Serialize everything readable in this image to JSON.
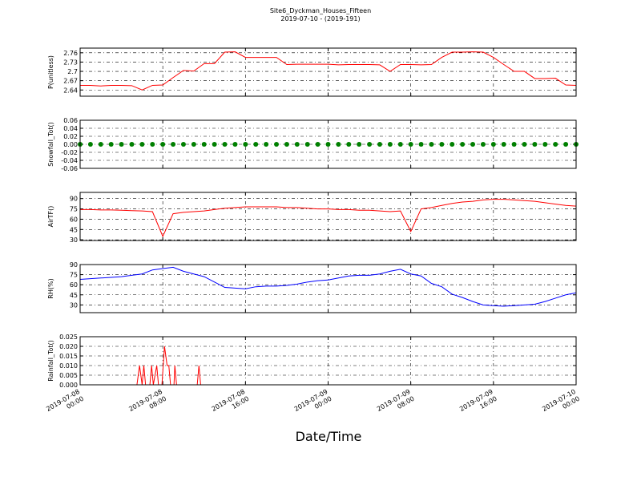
{
  "chart_data": [
    {
      "type": "line",
      "title": "Site6_Dyckman_Houses_Fifteen",
      "subtitle": "2019-07-10 - (2019-191)",
      "ylabel": "P(unitless)",
      "color": "#ff0000",
      "xlim": [
        "2019-07-08 00:00",
        "2019-07-10 00:00"
      ],
      "x": [
        "2019-07-08 00:00",
        "2019-07-08 01:00",
        "2019-07-08 02:00",
        "2019-07-08 03:00",
        "2019-07-08 04:00",
        "2019-07-08 05:00",
        "2019-07-08 06:00",
        "2019-07-08 07:00",
        "2019-07-08 08:00",
        "2019-07-08 09:00",
        "2019-07-08 10:00",
        "2019-07-08 11:00",
        "2019-07-08 12:00",
        "2019-07-08 13:00",
        "2019-07-08 14:00",
        "2019-07-08 15:00",
        "2019-07-08 16:00",
        "2019-07-08 17:00",
        "2019-07-08 18:00",
        "2019-07-08 19:00",
        "2019-07-08 20:00",
        "2019-07-08 21:00",
        "2019-07-08 22:00",
        "2019-07-08 23:00",
        "2019-07-09 00:00",
        "2019-07-09 01:00",
        "2019-07-09 02:00",
        "2019-07-09 03:00",
        "2019-07-09 04:00",
        "2019-07-09 05:00",
        "2019-07-09 06:00",
        "2019-07-09 07:00",
        "2019-07-09 08:00",
        "2019-07-09 09:00",
        "2019-07-09 10:00",
        "2019-07-09 11:00",
        "2019-07-09 12:00",
        "2019-07-09 13:00",
        "2019-07-09 14:00",
        "2019-07-09 15:00",
        "2019-07-09 16:00",
        "2019-07-09 17:00",
        "2019-07-09 18:00",
        "2019-07-09 19:00",
        "2019-07-09 20:00",
        "2019-07-09 21:00",
        "2019-07-09 22:00",
        "2019-07-09 23:00",
        "2019-07-10 00:00"
      ],
      "values": [
        2.655,
        2.655,
        2.653,
        2.655,
        2.655,
        2.654,
        2.64,
        2.655,
        2.656,
        2.68,
        2.703,
        2.701,
        2.725,
        2.725,
        2.762,
        2.763,
        2.745,
        2.745,
        2.745,
        2.745,
        2.722,
        2.723,
        2.723,
        2.723,
        2.723,
        2.721,
        2.722,
        2.722,
        2.722,
        2.721,
        2.7,
        2.722,
        2.722,
        2.721,
        2.722,
        2.745,
        2.762,
        2.762,
        2.763,
        2.762,
        2.745,
        2.722,
        2.7,
        2.7,
        2.677,
        2.677,
        2.678,
        2.656,
        2.655
      ],
      "ylim": [
        2.62,
        2.775
      ],
      "yticks": [
        2.64,
        2.67,
        2.7,
        2.73,
        2.76
      ],
      "grid": true
    },
    {
      "type": "scatter",
      "ylabel": "Snowfall_Tot()",
      "color": "#008000",
      "xlim": [
        "2019-07-08 00:00",
        "2019-07-10 00:00"
      ],
      "x": [
        "2019-07-08 00:00",
        "2019-07-08 01:00",
        "2019-07-08 02:00",
        "2019-07-08 03:00",
        "2019-07-08 04:00",
        "2019-07-08 05:00",
        "2019-07-08 06:00",
        "2019-07-08 07:00",
        "2019-07-08 08:00",
        "2019-07-08 09:00",
        "2019-07-08 10:00",
        "2019-07-08 11:00",
        "2019-07-08 12:00",
        "2019-07-08 13:00",
        "2019-07-08 14:00",
        "2019-07-08 15:00",
        "2019-07-08 16:00",
        "2019-07-08 17:00",
        "2019-07-08 18:00",
        "2019-07-08 19:00",
        "2019-07-08 20:00",
        "2019-07-08 21:00",
        "2019-07-08 22:00",
        "2019-07-08 23:00",
        "2019-07-09 00:00",
        "2019-07-09 01:00",
        "2019-07-09 02:00",
        "2019-07-09 03:00",
        "2019-07-09 04:00",
        "2019-07-09 05:00",
        "2019-07-09 06:00",
        "2019-07-09 07:00",
        "2019-07-09 08:00",
        "2019-07-09 09:00",
        "2019-07-09 10:00",
        "2019-07-09 11:00",
        "2019-07-09 12:00",
        "2019-07-09 13:00",
        "2019-07-09 14:00",
        "2019-07-09 15:00",
        "2019-07-09 16:00",
        "2019-07-09 17:00",
        "2019-07-09 18:00",
        "2019-07-09 19:00",
        "2019-07-09 20:00",
        "2019-07-09 21:00",
        "2019-07-09 22:00",
        "2019-07-09 23:00",
        "2019-07-10 00:00"
      ],
      "values": [
        0,
        0,
        0,
        0,
        0,
        0,
        0,
        0,
        0,
        0,
        0,
        0,
        0,
        0,
        0,
        0,
        0,
        0,
        0,
        0,
        0,
        0,
        0,
        0,
        0,
        0,
        0,
        0,
        0,
        0,
        0,
        0,
        0,
        0,
        0,
        0,
        0,
        0,
        0,
        0,
        0,
        0,
        0,
        0,
        0,
        0,
        0,
        0,
        0
      ],
      "ylim": [
        -0.06,
        0.06
      ],
      "yticks": [
        -0.06,
        -0.04,
        -0.02,
        {
          "value": 0,
          "label": "0.00"
        },
        0.02,
        0.04,
        0.06
      ],
      "grid": true
    },
    {
      "type": "line",
      "ylabel": "AirTF()",
      "color": "#ff0000",
      "xlim": [
        "2019-07-08 00:00",
        "2019-07-10 00:00"
      ],
      "x": [
        "2019-07-08 00:00",
        "2019-07-08 01:00",
        "2019-07-08 02:00",
        "2019-07-08 03:00",
        "2019-07-08 04:00",
        "2019-07-08 05:00",
        "2019-07-08 06:00",
        "2019-07-08 07:00",
        "2019-07-08 08:00",
        "2019-07-08 09:00",
        "2019-07-08 10:00",
        "2019-07-08 11:00",
        "2019-07-08 12:00",
        "2019-07-08 13:00",
        "2019-07-08 14:00",
        "2019-07-08 15:00",
        "2019-07-08 16:00",
        "2019-07-08 17:00",
        "2019-07-08 18:00",
        "2019-07-08 19:00",
        "2019-07-08 20:00",
        "2019-07-08 21:00",
        "2019-07-08 22:00",
        "2019-07-08 23:00",
        "2019-07-09 00:00",
        "2019-07-09 01:00",
        "2019-07-09 02:00",
        "2019-07-09 03:00",
        "2019-07-09 04:00",
        "2019-07-09 05:00",
        "2019-07-09 06:00",
        "2019-07-09 07:00",
        "2019-07-09 08:00",
        "2019-07-09 09:00",
        "2019-07-09 10:00",
        "2019-07-09 11:00",
        "2019-07-09 12:00",
        "2019-07-09 13:00",
        "2019-07-09 14:00",
        "2019-07-09 15:00",
        "2019-07-09 16:00",
        "2019-07-09 17:00",
        "2019-07-09 18:00",
        "2019-07-09 19:00",
        "2019-07-09 20:00",
        "2019-07-09 21:00",
        "2019-07-09 22:00",
        "2019-07-09 23:00",
        "2019-07-10 00:00"
      ],
      "values": [
        74,
        74,
        73.5,
        73.5,
        73,
        72.5,
        72,
        71,
        35,
        68,
        70,
        71,
        72,
        74,
        76,
        77,
        78,
        78,
        78,
        78,
        77,
        77,
        76,
        75,
        75,
        74,
        74,
        73,
        73,
        72,
        71,
        72,
        42,
        75,
        77,
        80,
        83,
        85,
        86,
        88,
        89,
        89,
        88,
        87,
        86,
        84,
        82,
        80,
        79
      ],
      "ylim": [
        29,
        99
      ],
      "yticks": [
        30,
        45,
        60,
        75,
        90
      ],
      "grid": true
    },
    {
      "type": "line",
      "ylabel": "RH(%)",
      "color": "#0000ff",
      "xlim": [
        "2019-07-08 00:00",
        "2019-07-10 00:00"
      ],
      "x": [
        "2019-07-08 00:00",
        "2019-07-08 01:00",
        "2019-07-08 02:00",
        "2019-07-08 03:00",
        "2019-07-08 04:00",
        "2019-07-08 05:00",
        "2019-07-08 06:00",
        "2019-07-08 07:00",
        "2019-07-08 08:00",
        "2019-07-08 09:00",
        "2019-07-08 10:00",
        "2019-07-08 11:00",
        "2019-07-08 12:00",
        "2019-07-08 13:00",
        "2019-07-08 14:00",
        "2019-07-08 15:00",
        "2019-07-08 16:00",
        "2019-07-08 17:00",
        "2019-07-08 18:00",
        "2019-07-08 19:00",
        "2019-07-08 20:00",
        "2019-07-08 21:00",
        "2019-07-08 22:00",
        "2019-07-08 23:00",
        "2019-07-09 00:00",
        "2019-07-09 01:00",
        "2019-07-09 02:00",
        "2019-07-09 03:00",
        "2019-07-09 04:00",
        "2019-07-09 05:00",
        "2019-07-09 06:00",
        "2019-07-09 07:00",
        "2019-07-09 08:00",
        "2019-07-09 09:00",
        "2019-07-09 10:00",
        "2019-07-09 11:00",
        "2019-07-09 12:00",
        "2019-07-09 13:00",
        "2019-07-09 14:00",
        "2019-07-09 15:00",
        "2019-07-09 16:00",
        "2019-07-09 17:00",
        "2019-07-09 18:00",
        "2019-07-09 19:00",
        "2019-07-09 20:00",
        "2019-07-09 21:00",
        "2019-07-09 22:00",
        "2019-07-09 23:00",
        "2019-07-10 00:00"
      ],
      "values": [
        68,
        69,
        70,
        71,
        72,
        74,
        76,
        82,
        84,
        86,
        80,
        76,
        72,
        64,
        56,
        55,
        54,
        57,
        58,
        58,
        59,
        61,
        64,
        66,
        67,
        70,
        73,
        74,
        74,
        76,
        80,
        83,
        76,
        73,
        62,
        57,
        46,
        41,
        35,
        30,
        29,
        28,
        29,
        30,
        31,
        35,
        40,
        45,
        48
      ],
      "ylim": [
        18.5,
        90
      ],
      "yticks": [
        30,
        45,
        60,
        75,
        90
      ],
      "grid": true
    },
    {
      "type": "line",
      "ylabel": "Rainfall_Tot()",
      "xlabel": "Date/Time",
      "color": "#ff0000",
      "xlim": [
        "2019-07-08 00:00",
        "2019-07-10 00:00"
      ],
      "x": [
        "2019-07-08 00:00",
        "2019-07-08 05:30",
        "2019-07-08 05:45",
        "2019-07-08 06:00",
        "2019-07-08 06:10",
        "2019-07-08 06:20",
        "2019-07-08 06:45",
        "2019-07-08 06:55",
        "2019-07-08 07:05",
        "2019-07-08 07:25",
        "2019-07-08 07:35",
        "2019-07-08 07:55",
        "2019-07-08 08:10",
        "2019-07-08 08:25",
        "2019-07-08 08:35",
        "2019-07-08 08:45",
        "2019-07-08 09:05",
        "2019-07-08 09:10",
        "2019-07-08 09:20",
        "2019-07-08 11:20",
        "2019-07-08 11:30",
        "2019-07-08 11:40",
        "2019-07-10 00:00"
      ],
      "values": [
        0,
        0,
        0.01,
        0,
        0.01,
        0,
        0,
        0.01,
        0,
        0.01,
        0,
        0,
        0.02,
        0.01,
        0.01,
        0,
        0,
        0.01,
        0,
        0,
        0.01,
        0,
        0
      ],
      "ylim": [
        0,
        0.025
      ],
      "yticks": [
        {
          "value": 0,
          "label": "0.000"
        },
        0.005,
        {
          "value": 0.01,
          "label": "0.010"
        },
        0.015,
        {
          "value": 0.02,
          "label": "0.020"
        },
        0.025
      ],
      "xticks": [
        "2019-07-08 00:00",
        "2019-07-08 08:00",
        "2019-07-08 16:00",
        "2019-07-09 00:00",
        "2019-07-09 08:00",
        "2019-07-09 16:00",
        "2019-07-10 00:00"
      ],
      "grid": true
    }
  ]
}
